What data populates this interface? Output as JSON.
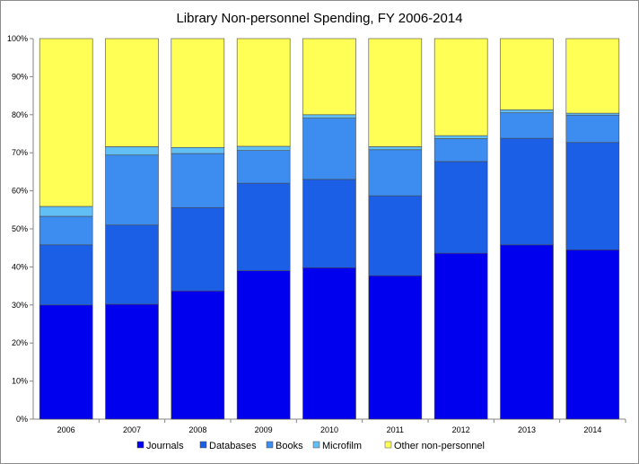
{
  "chart_data": {
    "type": "bar",
    "stacked": true,
    "normalized": true,
    "title": "Library Non-personnel  Spending, FY 2006-2014",
    "xlabel": "",
    "ylabel": "",
    "ylim": [
      0,
      100
    ],
    "y_ticks": [
      0,
      10,
      20,
      30,
      40,
      50,
      60,
      70,
      80,
      90,
      100
    ],
    "y_tick_labels": [
      "0%",
      "10%",
      "20%",
      "30%",
      "40%",
      "50%",
      "60%",
      "70%",
      "80%",
      "90%",
      "100%"
    ],
    "categories": [
      "2006",
      "2007",
      "2008",
      "2009",
      "2010",
      "2011",
      "2012",
      "2013",
      "2014"
    ],
    "series": [
      {
        "name": "Journals",
        "color": "#0000ee",
        "values": [
          30,
          30.2,
          33.7,
          39,
          39.8,
          37.7,
          43.6,
          45.8,
          44.5
        ]
      },
      {
        "name": "Databases",
        "color": "#1a5fe6",
        "values": [
          15.8,
          20.8,
          21.9,
          23,
          23.2,
          21,
          24.1,
          28,
          28.2
        ]
      },
      {
        "name": "Books",
        "color": "#3d8cf0",
        "values": [
          7.5,
          18.4,
          14.2,
          8.6,
          16.1,
          12.1,
          6,
          6.7,
          7.2
        ]
      },
      {
        "name": "Microfilm",
        "color": "#62bff5",
        "values": [
          2.6,
          2.2,
          1.6,
          1.1,
          0.9,
          0.8,
          0.8,
          0.8,
          0.5
        ]
      },
      {
        "name": "Other non-personnel",
        "color": "#ffff55",
        "values": [
          44.1,
          28.4,
          28.6,
          28.3,
          20,
          28.4,
          25.5,
          18.7,
          19.6
        ]
      }
    ],
    "legend_position": "bottom",
    "grid": false
  }
}
